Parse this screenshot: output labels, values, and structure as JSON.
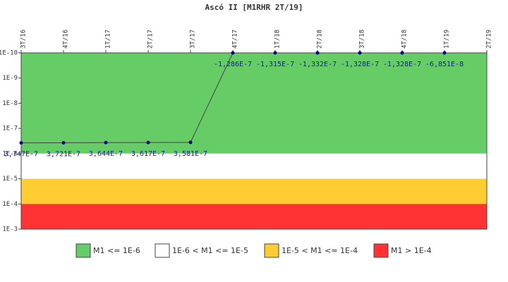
{
  "chart_data": {
    "type": "line",
    "title": "Ascó II [M1RHR 2T/19]",
    "categories": [
      "3T/16",
      "4T/16",
      "1T/17",
      "2T/17",
      "3T/17",
      "4T/17",
      "1T/18",
      "2T/18",
      "3T/18",
      "4T/18",
      "1T/19",
      "2T/19"
    ],
    "series": [
      {
        "color": "#000080",
        "line_color": "#444444",
        "values": [
          3.747e-07,
          3.721e-07,
          3.644e-07,
          3.617e-07,
          3.581e-07,
          -1.286e-07,
          -1.315e-07,
          -1.332e-07,
          -1.328e-07,
          -1.328e-07,
          -6.851e-08,
          null
        ],
        "value_labels": [
          "3,747E-7",
          "3,721E-7",
          "3,644E-7",
          "3,617E-7",
          "3,581E-7",
          "-1,286E-7",
          "-1,315E-7",
          "-1,332E-7",
          "-1,328E-7",
          "-1,328E-7",
          "-6,851E-8",
          null
        ]
      }
    ],
    "log_scale": true,
    "ylim": [
      0.001,
      1e-10
    ],
    "yticks": [
      {
        "value": 1e-10,
        "label": "1E-10"
      },
      {
        "value": 1e-09,
        "label": "1E-9"
      },
      {
        "value": 1e-08,
        "label": "1E-8"
      },
      {
        "value": 1e-07,
        "label": "1E-7"
      },
      {
        "value": 1e-06,
        "label": "1E-6"
      },
      {
        "value": 1e-05,
        "label": "1E-5"
      },
      {
        "value": 0.0001,
        "label": "1E-4"
      },
      {
        "value": 0.001,
        "label": "1E-3"
      }
    ],
    "bands": [
      {
        "name": "M1 <= 1E-6",
        "color": "#66cc66",
        "from": 1e-10,
        "to": 1e-06
      },
      {
        "name": "1E-6 < M1 <= 1E-5",
        "color": "#ffffff",
        "from": 1e-06,
        "to": 1e-05
      },
      {
        "name": "1E-5 < M1 <= 1E-4",
        "color": "#ffcc33",
        "from": 1e-05,
        "to": 0.0001
      },
      {
        "name": "M1 > 1E-4",
        "color": "#ff3333",
        "from": 0.0001,
        "to": 0.001
      }
    ],
    "legend": "bottom"
  }
}
